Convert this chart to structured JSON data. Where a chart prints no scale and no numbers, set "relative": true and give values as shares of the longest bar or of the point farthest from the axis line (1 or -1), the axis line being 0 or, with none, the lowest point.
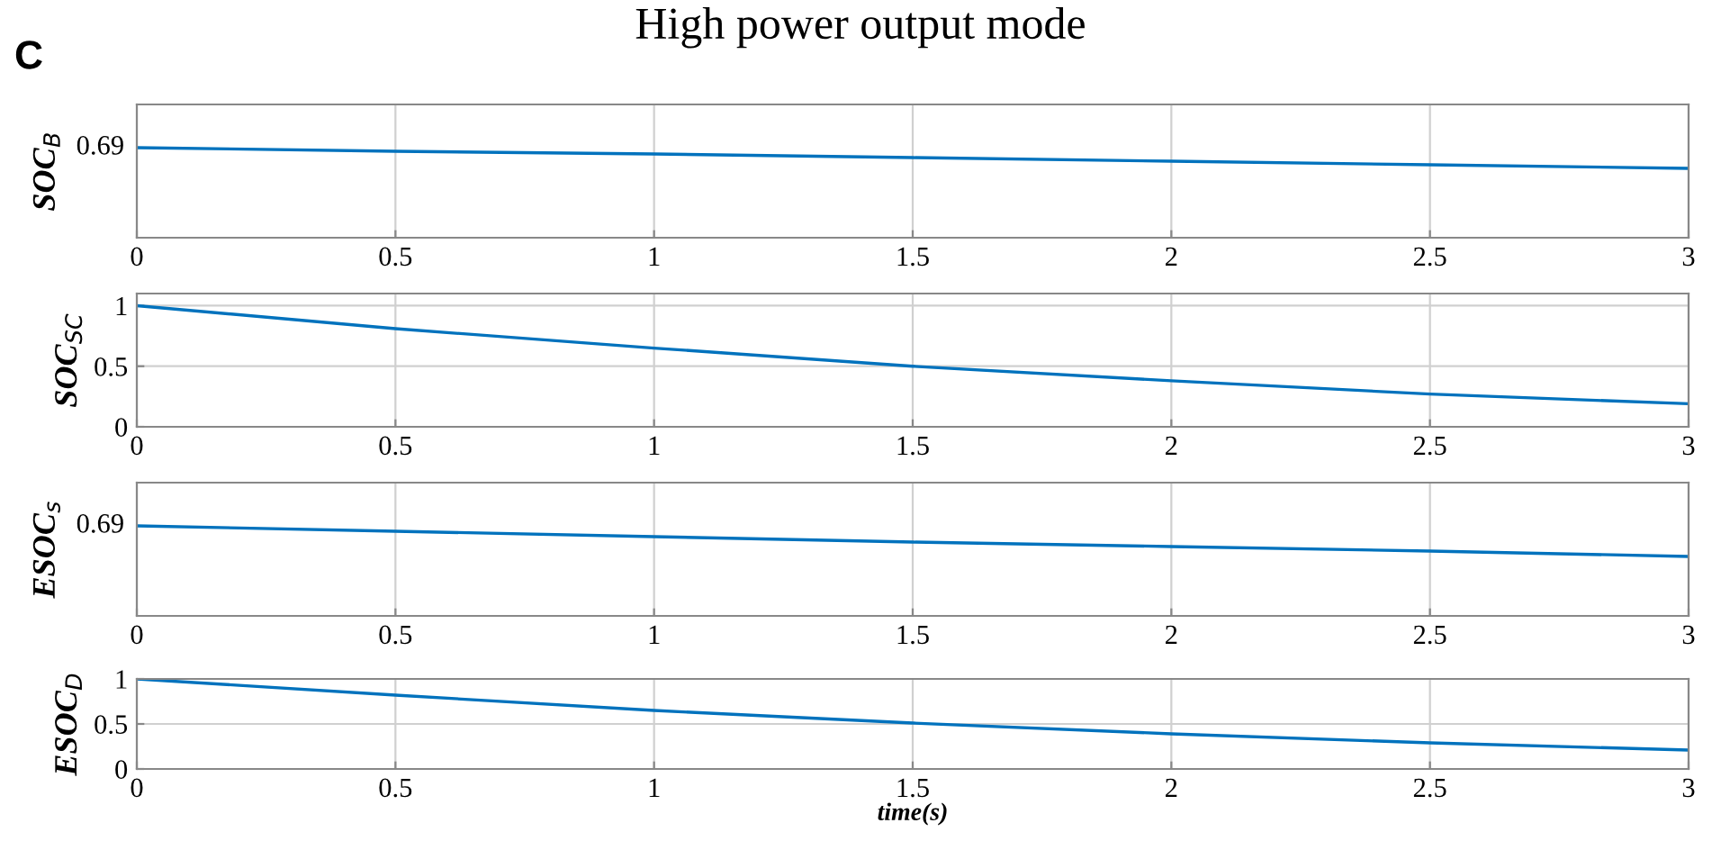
{
  "chart_data": [
    {
      "type": "line",
      "title": "High power output mode",
      "ylabel": "SOC$_{B}$",
      "relative": true,
      "x": [
        0,
        0.5,
        1,
        1.5,
        2,
        2.5,
        3
      ],
      "series": [
        {
          "color": "#0072bd",
          "values": [
            1.0,
            0.96,
            0.93,
            0.89,
            0.85,
            0.81,
            0.77
          ]
        }
      ],
      "xlim": [
        0,
        3
      ],
      "xticks": [
        0,
        0.5,
        1,
        1.5,
        2,
        2.5,
        3
      ],
      "annotations": [
        "C",
        {
          "text": "0.69",
          "x": 0,
          "y": 1.0
        }
      ],
      "grid": "x",
      "legend": false
    },
    {
      "type": "line",
      "ylabel": "SOC$_{SC}$",
      "x": [
        0,
        0.5,
        1,
        1.5,
        2,
        2.5,
        3
      ],
      "series": [
        {
          "color": "#0072bd",
          "values": [
            1.0,
            0.81,
            0.65,
            0.5,
            0.38,
            0.27,
            0.19
          ]
        }
      ],
      "xlim": [
        0,
        3
      ],
      "xticks": [
        0,
        0.5,
        1,
        1.5,
        2,
        2.5,
        3
      ],
      "ylim": [
        0,
        1.1
      ],
      "yticks": [
        0,
        0.5,
        1
      ],
      "grid": true,
      "legend": false
    },
    {
      "type": "line",
      "ylabel": "ESOC$_{s}$",
      "relative": true,
      "x": [
        0,
        0.5,
        1,
        1.5,
        2,
        2.5,
        3
      ],
      "series": [
        {
          "color": "#0072bd",
          "values": [
            1.0,
            0.94,
            0.88,
            0.82,
            0.77,
            0.72,
            0.66
          ]
        }
      ],
      "xlim": [
        0,
        3
      ],
      "xticks": [
        0,
        0.5,
        1,
        1.5,
        2,
        2.5,
        3
      ],
      "annotations": [
        {
          "text": "0.69",
          "x": 0,
          "y": 1.0
        }
      ],
      "grid": "x",
      "legend": false
    },
    {
      "type": "line",
      "ylabel": "ESOC$_{D}$",
      "xlabel": "time(s)",
      "x": [
        0,
        0.5,
        1,
        1.5,
        2,
        2.5,
        3
      ],
      "series": [
        {
          "color": "#0072bd",
          "values": [
            1.0,
            0.82,
            0.65,
            0.51,
            0.39,
            0.29,
            0.21
          ]
        }
      ],
      "xlim": [
        0,
        3
      ],
      "xticks": [
        0,
        0.5,
        1,
        1.5,
        2,
        2.5,
        3
      ],
      "ylim": [
        0,
        1
      ],
      "yticks": [
        0,
        0.5,
        1
      ],
      "grid": true,
      "legend": false
    }
  ]
}
